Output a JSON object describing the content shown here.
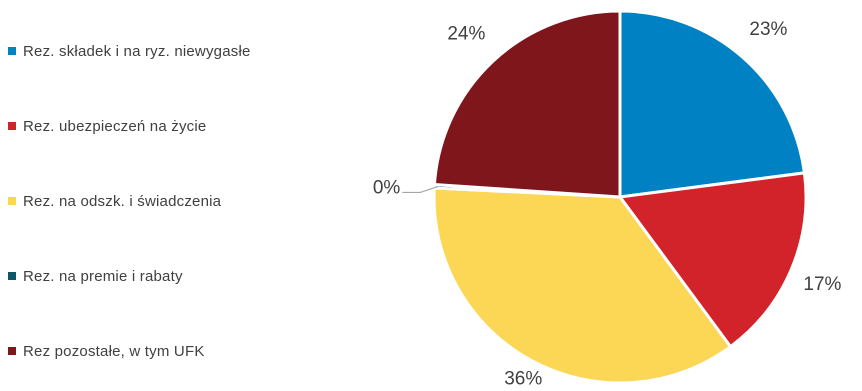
{
  "chart_data": {
    "type": "pie",
    "slices": [
      {
        "label": "Rez. składek i na ryz. niewygasłe",
        "value": 23,
        "value_label": "23%",
        "color": "#0081C3"
      },
      {
        "label": "Rez. ubezpieczeń na życie",
        "value": 17,
        "value_label": "17%",
        "color": "#D2232A"
      },
      {
        "label": "Rez. na odszk. i świadczenia",
        "value": 36,
        "value_label": "36%",
        "color": "#FCD655"
      },
      {
        "label": "Rez. na premie i rabaty",
        "value": 0.3,
        "value_label": "0%",
        "color": "#0E5663"
      },
      {
        "label": "Rez pozostałe, w tym UFK",
        "value": 24,
        "value_label": "24%",
        "color": "#7F161C"
      }
    ],
    "legend": "left",
    "start": "12 o'clock",
    "direction": "clockwise"
  }
}
